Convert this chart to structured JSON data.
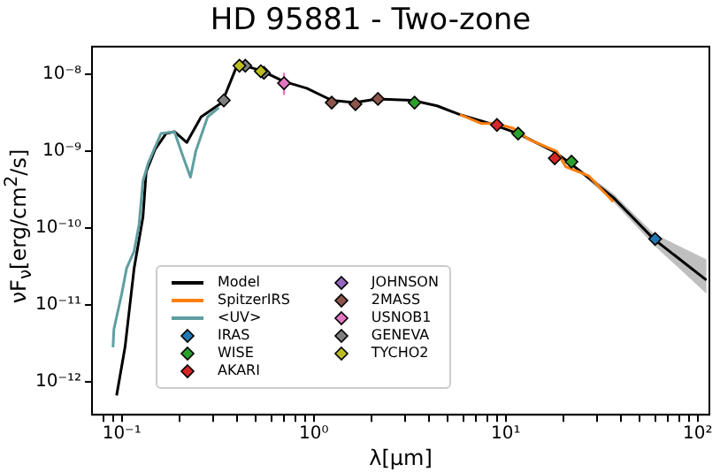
{
  "chart_data": {
    "type": "line",
    "title": "HD 95881 - Two-zone",
    "xlabel": "λ[μm]",
    "ylabel": "νF$_{ν}$[erg/cm$^{2}$/s]",
    "log": "xy",
    "grid": false,
    "legend": "bottom left",
    "marker": "diamond",
    "xlim": [
      0.07,
      115
    ],
    "ylim": [
      3.7e-13,
      2.3e-08
    ],
    "xticks": [
      {
        "value": 0.08,
        "label": null
      },
      {
        "value": 0.09,
        "label": null
      },
      {
        "value": 0.1,
        "label": "10⁻¹"
      },
      {
        "value": 0.2,
        "label": null
      },
      {
        "value": 0.3,
        "label": null
      },
      {
        "value": 0.4,
        "label": null
      },
      {
        "value": 0.5,
        "label": null
      },
      {
        "value": 0.6,
        "label": null
      },
      {
        "value": 0.7,
        "label": null
      },
      {
        "value": 0.8,
        "label": null
      },
      {
        "value": 0.9,
        "label": null
      },
      {
        "value": 1,
        "label": "10⁰"
      },
      {
        "value": 2,
        "label": null
      },
      {
        "value": 3,
        "label": null
      },
      {
        "value": 4,
        "label": null
      },
      {
        "value": 5,
        "label": null
      },
      {
        "value": 6,
        "label": null
      },
      {
        "value": 7,
        "label": null
      },
      {
        "value": 8,
        "label": null
      },
      {
        "value": 9,
        "label": null
      },
      {
        "value": 10,
        "label": "10¹"
      },
      {
        "value": 20,
        "label": null
      },
      {
        "value": 30,
        "label": null
      },
      {
        "value": 40,
        "label": null
      },
      {
        "value": 50,
        "label": null
      },
      {
        "value": 60,
        "label": null
      },
      {
        "value": 70,
        "label": null
      },
      {
        "value": 80,
        "label": null
      },
      {
        "value": 90,
        "label": null
      },
      {
        "value": 100,
        "label": "10²"
      }
    ],
    "yticks": [
      {
        "value": 1e-12,
        "label": "10⁻¹²"
      },
      {
        "value": 1e-11,
        "label": "10⁻¹¹"
      },
      {
        "value": 1e-10,
        "label": "10⁻¹⁰"
      },
      {
        "value": 1e-09,
        "label": "10⁻⁹"
      },
      {
        "value": 1e-08,
        "label": "10⁻⁸"
      }
    ],
    "series": [
      {
        "name": "Model",
        "type": "line",
        "marker": "none",
        "color": "#000000",
        "x": [
          0.094,
          0.104,
          0.116,
          0.129,
          0.134,
          0.149,
          0.17,
          0.188,
          0.218,
          0.259,
          0.333,
          0.395,
          0.439,
          0.542,
          0.698,
          0.92,
          1.24,
          1.63,
          2.14,
          3.26,
          4.39,
          5.77,
          8.26,
          11.6,
          17.7,
          21.8,
          36.3,
          59,
          111
        ],
        "values": [
          6.6e-13,
          2.8e-12,
          3e-11,
          1.4e-10,
          5.4e-10,
          1.05e-09,
          1.7e-09,
          1.8e-09,
          1.3e-09,
          2.8e-09,
          4.3e-09,
          1.24e-08,
          1.3e-08,
          1.1e-08,
          8.1e-09,
          6.6e-09,
          4.6e-09,
          4.3e-09,
          4.8e-09,
          4.6e-09,
          3.9e-09,
          3e-09,
          2.3e-09,
          1.7e-09,
          1e-09,
          6.9e-10,
          2.5e-10,
          7.2e-11,
          2.1e-11
        ],
        "lower": [
          null,
          null,
          null,
          null,
          null,
          null,
          null,
          null,
          null,
          null,
          null,
          null,
          null,
          null,
          null,
          null,
          null,
          null,
          null,
          null,
          null,
          null,
          null,
          null,
          null,
          6.6e-10,
          2.2e-10,
          6e-11,
          1.4e-11
        ],
        "upper": [
          null,
          null,
          null,
          null,
          null,
          null,
          null,
          null,
          null,
          null,
          null,
          null,
          null,
          null,
          null,
          null,
          null,
          null,
          null,
          null,
          null,
          null,
          null,
          null,
          null,
          7.2e-10,
          2.8e-10,
          8.5e-11,
          3.9e-11
        ]
      },
      {
        "name": "SpitzerIRS",
        "type": "line",
        "marker": "none",
        "color": "#ff7f0e",
        "x": [
          5.77,
          7.44,
          8.81,
          10.9,
          13.4,
          18.4,
          20.5,
          27.0,
          36.3
        ],
        "values": [
          3e-09,
          2.3e-09,
          2.3e-09,
          2e-09,
          1.4e-09,
          1e-09,
          6.3e-10,
          4.8e-10,
          2.2e-10
        ]
      },
      {
        "name": "<UV>",
        "type": "line",
        "marker": "none",
        "color": "#5f9ea0",
        "x": [
          0.09,
          0.091,
          0.1,
          0.106,
          0.116,
          0.123,
          0.129,
          0.137,
          0.16,
          0.188,
          0.21,
          0.228,
          0.243,
          0.28,
          0.32
        ],
        "values": [
          2.8e-12,
          4.8e-12,
          1.4e-11,
          3e-11,
          5e-11,
          1.1e-10,
          4.1e-10,
          6.9e-10,
          1.7e-09,
          1.8e-09,
          8.1e-10,
          4.6e-10,
          1e-09,
          2.8e-09,
          3.7e-09
        ]
      },
      {
        "name": "IRAS",
        "type": "scatter",
        "color": "#1f77b4",
        "x": [
          60
        ],
        "values": [
          7.2e-11
        ]
      },
      {
        "name": "WISE",
        "type": "scatter",
        "color": "#2ca02c",
        "x": [
          3.35,
          11.6,
          22
        ],
        "values": [
          4.3e-09,
          1.7e-09,
          7.3e-10
        ]
      },
      {
        "name": "AKARI",
        "type": "scatter",
        "color": "#d62728",
        "x": [
          9,
          18
        ],
        "values": [
          2.2e-09,
          8.1e-10
        ]
      },
      {
        "name": "JOHNSON",
        "type": "scatter",
        "color": "#9467bd"
      },
      {
        "name": "2MASS",
        "type": "scatter",
        "color": "#8c564b",
        "x": [
          1.24,
          1.65,
          2.16
        ],
        "values": [
          4.3e-09,
          4.1e-09,
          4.8e-09
        ]
      },
      {
        "name": "USNOB1",
        "type": "scatter",
        "color": "#e377c2",
        "x": [
          0.7
        ],
        "values": [
          7.7e-09
        ],
        "errors": [
          [
            5.4e-09,
            1.05e-08
          ]
        ]
      },
      {
        "name": "GENEVA",
        "type": "scatter",
        "color": "#7f7f7f",
        "x": [
          0.34,
          0.44,
          0.55
        ],
        "values": [
          4.6e-09,
          1.3e-08,
          1.05e-08
        ]
      },
      {
        "name": "TYCHO2",
        "type": "scatter",
        "color": "#bcbd22",
        "x": [
          0.41,
          0.53
        ],
        "values": [
          1.3e-08,
          1.1e-08
        ]
      }
    ]
  }
}
